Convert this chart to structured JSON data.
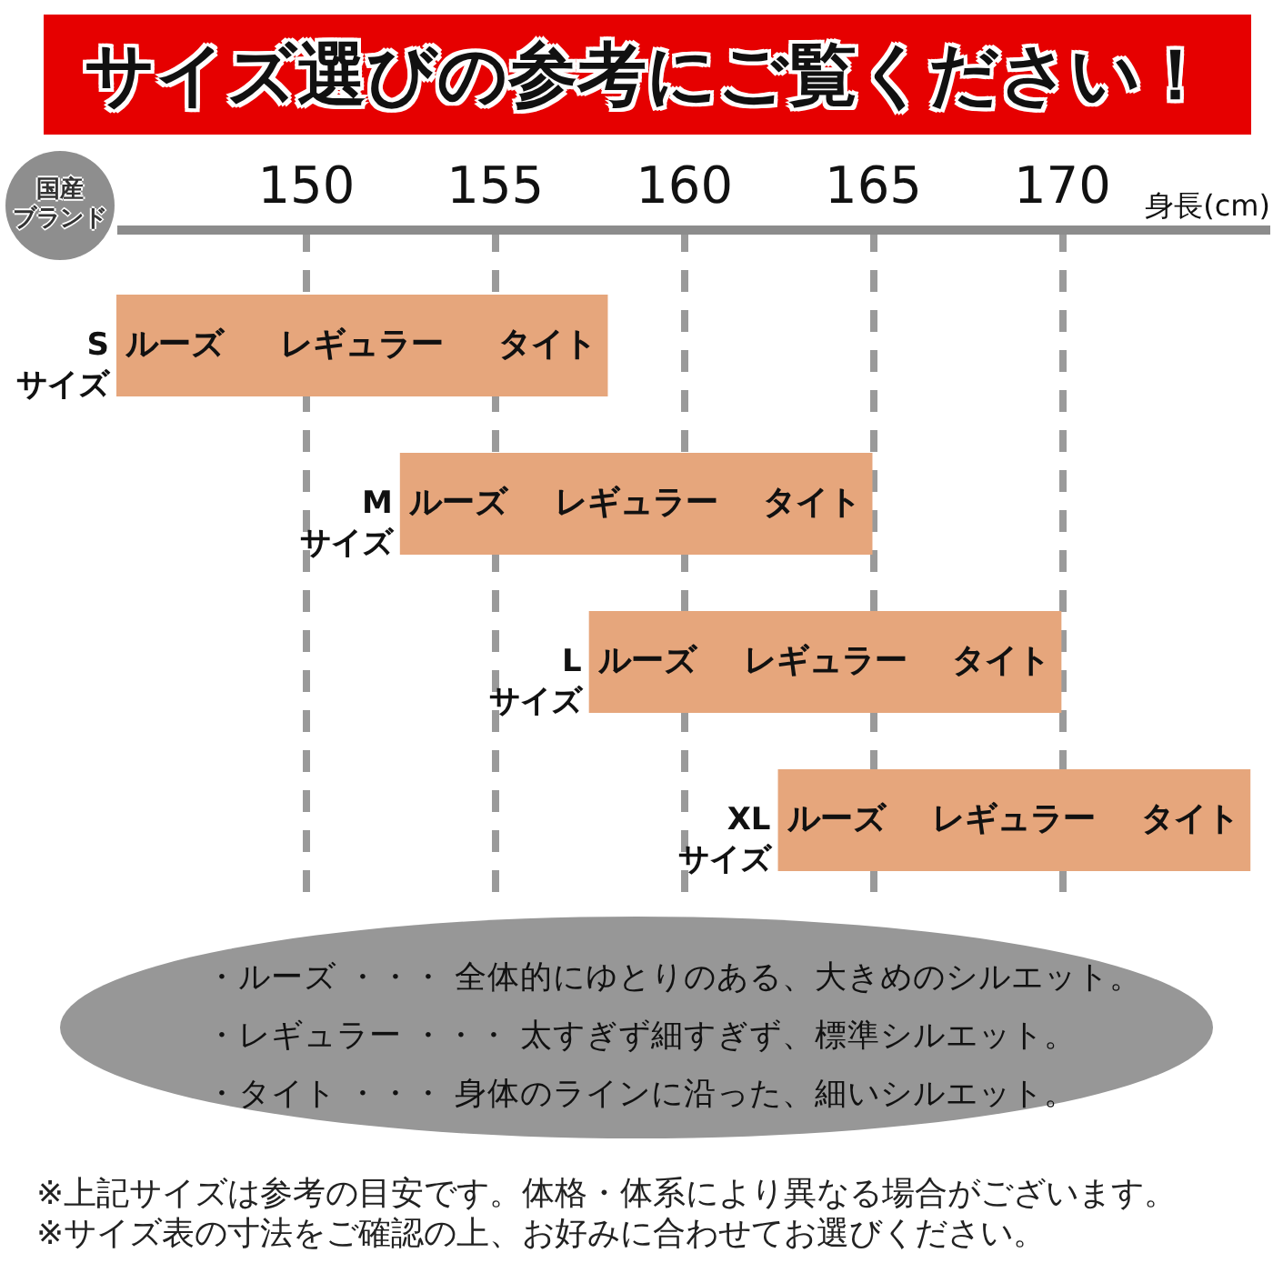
{
  "chart_data": {
    "type": "bar",
    "orientation": "horizontal",
    "title": "サイズ選びの参考にご覧ください！",
    "xlabel": "身長(cm)",
    "ylabel": "国産ブランド",
    "categories": [
      "S\nサイズ",
      "M\nサイズ",
      "L\nサイズ",
      "XL\nサイズ"
    ],
    "base": [
      145,
      152.5,
      157.5,
      162.5
    ],
    "values": [
      13,
      12.5,
      12.5,
      12.5
    ],
    "color": "#e6a67c",
    "xlim": [
      145,
      175.5
    ],
    "xticks": [
      150,
      155,
      160,
      165,
      170
    ],
    "grid": "x",
    "annotations": [
      "ルーズ",
      "レギュラー",
      "タイト",
      "ルーズ",
      "レギュラー",
      "タイト",
      "ルーズ",
      "レギュラー",
      "タイト",
      "ルーズ",
      "レギュラー",
      "タイト",
      "・ルーズ ・・・ 全体的にゆとりのある、大きめのシルエット。",
      "・レギュラー ・・・ 太すぎず細すぎず、標準シルエット。",
      "・タイト ・・・ 身体のラインに沿った、細いシルエット。",
      "※上記サイズは参考の目安です。体格・体系により異なる場合がございます。",
      "※サイズ表の寸法をご確認の上、お好みに合わせてお選びください。"
    ]
  }
}
